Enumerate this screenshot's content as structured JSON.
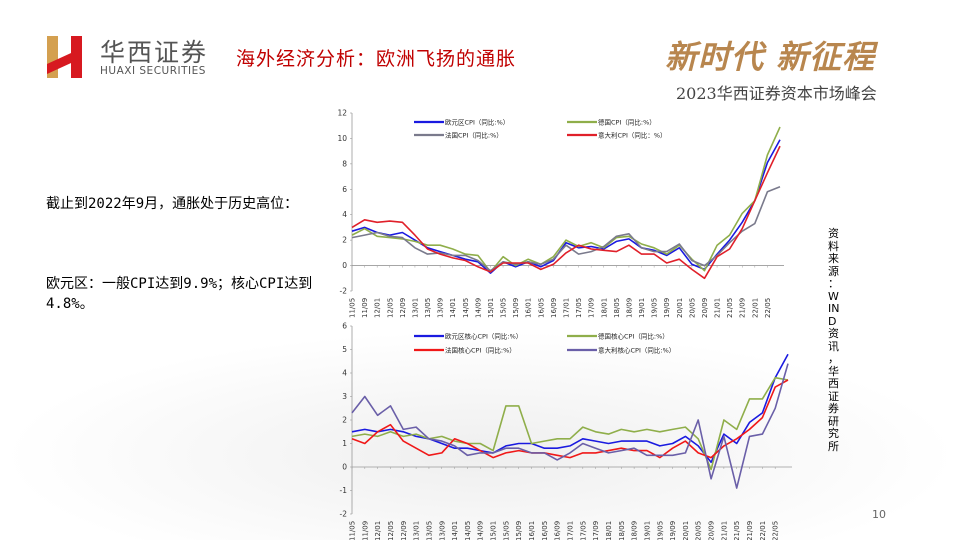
{
  "header": {
    "brand_cn": "华西证券",
    "brand_en": "HUAXI SECURITIES",
    "title": "海外经济分析：欧洲飞扬的通胀",
    "slogan": "新时代 新征程",
    "summit": "2023华西证券资本市场峰会"
  },
  "body": {
    "para1": "截止到2022年9月，通胀处于历史高位：",
    "para2": "欧元区：一般CPI达到9.9%；核心CPI达到4.8%。"
  },
  "source": "资料来源：WIND资讯，华西证券研究所",
  "page_number": "10",
  "chart_data": [
    {
      "type": "line",
      "ylim": [
        -2,
        12
      ],
      "yticks": [
        "12",
        "10",
        "8",
        "6",
        "4",
        "2",
        "0",
        "-2"
      ],
      "x": [
        "11/05",
        "11/09",
        "12/01",
        "12/05",
        "12/09",
        "13/01",
        "13/05",
        "13/09",
        "14/01",
        "14/05",
        "14/09",
        "15/01",
        "15/05",
        "15/09",
        "16/01",
        "16/05",
        "16/09",
        "17/01",
        "17/05",
        "17/09",
        "18/01",
        "18/05",
        "18/09",
        "19/01",
        "19/05",
        "19/09",
        "20/01",
        "20/05",
        "20/09",
        "21/01",
        "21/05",
        "21/09",
        "22/01",
        "22/05",
        "22/09"
      ],
      "xticks": [
        "11/05",
        "11/09",
        "12/01",
        "12/05",
        "12/09",
        "13/01",
        "13/05",
        "13/09",
        "14/01",
        "14/05",
        "14/09",
        "15/01",
        "15/05",
        "15/09",
        "16/01",
        "16/05",
        "16/09",
        "17/01",
        "17/05",
        "17/09",
        "18/01",
        "18/05",
        "18/09",
        "19/01",
        "19/05",
        "19/09",
        "20/01",
        "20/05",
        "20/09",
        "21/01",
        "21/05",
        "21/09",
        "22/01",
        "22/05"
      ],
      "legend_placement": "top",
      "series": [
        {
          "name": "欧元区CPI（同比:%）",
          "color": "#1a1ae0",
          "values": [
            2.7,
            3.0,
            2.6,
            2.4,
            2.6,
            2.0,
            1.4,
            1.1,
            0.8,
            0.5,
            0.3,
            -0.6,
            0.3,
            -0.1,
            0.3,
            -0.1,
            0.4,
            1.8,
            1.4,
            1.5,
            1.3,
            1.9,
            2.1,
            1.4,
            1.2,
            0.8,
            1.4,
            0.1,
            -0.3,
            0.9,
            2.0,
            3.4,
            5.1,
            8.1,
            9.9
          ]
        },
        {
          "name": "德国CPI（同比:%）",
          "color": "#8fae4a",
          "values": [
            2.4,
            2.9,
            2.3,
            2.2,
            2.1,
            1.9,
            1.6,
            1.6,
            1.3,
            0.9,
            0.8,
            -0.5,
            0.7,
            0.0,
            0.5,
            0.1,
            0.7,
            2.0,
            1.5,
            1.8,
            1.4,
            2.2,
            2.3,
            1.7,
            1.4,
            0.9,
            1.6,
            0.5,
            -0.4,
            1.6,
            2.4,
            4.1,
            5.1,
            8.7,
            10.9
          ]
        },
        {
          "name": "法国CPI（同比:%）",
          "color": "#7a7a8c",
          "values": [
            2.2,
            2.4,
            2.6,
            2.3,
            2.2,
            1.4,
            0.9,
            1.0,
            0.8,
            0.8,
            0.4,
            -0.4,
            0.3,
            0.1,
            0.3,
            0.1,
            0.5,
            1.6,
            0.9,
            1.1,
            1.5,
            2.3,
            2.5,
            1.4,
            1.1,
            1.1,
            1.7,
            0.4,
            0.0,
            0.8,
            1.8,
            2.7,
            3.3,
            5.8,
            6.2
          ]
        },
        {
          "name": "意大利CPI（同比：%）",
          "color": "#e0202a",
          "values": [
            3.0,
            3.6,
            3.4,
            3.5,
            3.4,
            2.4,
            1.3,
            0.9,
            0.6,
            0.4,
            -0.1,
            -0.5,
            0.2,
            0.2,
            0.2,
            -0.3,
            0.1,
            1.0,
            1.6,
            1.3,
            1.2,
            1.1,
            1.6,
            0.9,
            0.9,
            0.2,
            0.5,
            -0.3,
            -1.0,
            0.7,
            1.3,
            2.9,
            5.1,
            7.3,
            9.4
          ]
        }
      ]
    },
    {
      "type": "line",
      "ylim": [
        -2,
        6
      ],
      "yticks": [
        "6",
        "5",
        "4",
        "3",
        "2",
        "1",
        "0",
        "-1",
        "-2"
      ],
      "x": [
        "11/05",
        "11/09",
        "12/01",
        "12/05",
        "12/09",
        "13/01",
        "13/05",
        "13/09",
        "14/01",
        "14/05",
        "14/09",
        "15/01",
        "15/05",
        "15/09",
        "16/01",
        "16/05",
        "16/09",
        "17/01",
        "17/05",
        "17/09",
        "18/01",
        "18/05",
        "18/09",
        "19/01",
        "19/05",
        "19/09",
        "20/01",
        "20/05",
        "20/09",
        "21/01",
        "21/05",
        "21/09",
        "22/01",
        "22/05",
        "22/09"
      ],
      "xticks": [
        "11/05",
        "11/09",
        "12/01",
        "12/05",
        "12/09",
        "13/01",
        "13/05",
        "13/09",
        "14/01",
        "14/05",
        "14/09",
        "15/01",
        "15/05",
        "15/09",
        "16/01",
        "16/05",
        "16/09",
        "17/01",
        "17/05",
        "17/09",
        "18/01",
        "18/05",
        "18/09",
        "19/01",
        "19/05",
        "19/09",
        "20/01",
        "20/05",
        "20/09",
        "21/01",
        "21/05",
        "21/09",
        "22/01",
        "22/05"
      ],
      "legend_placement": "top",
      "series": [
        {
          "name": "欧元区核心CPI（同比:%）",
          "color": "#1a1ae0",
          "values": [
            1.5,
            1.6,
            1.5,
            1.6,
            1.5,
            1.3,
            1.2,
            1.0,
            0.8,
            0.8,
            0.7,
            0.6,
            0.9,
            1.0,
            1.0,
            0.8,
            0.8,
            0.9,
            1.2,
            1.1,
            1.0,
            1.1,
            1.1,
            1.1,
            0.9,
            1.0,
            1.3,
            0.9,
            0.2,
            1.4,
            1.0,
            1.9,
            2.3,
            3.8,
            4.8
          ]
        },
        {
          "name": "德国核心CPI（同比:%）",
          "color": "#8fae4a",
          "values": [
            1.3,
            1.4,
            1.3,
            1.5,
            1.3,
            1.4,
            1.2,
            1.3,
            1.1,
            1.0,
            1.0,
            0.7,
            2.6,
            2.6,
            1.0,
            1.1,
            1.2,
            1.2,
            1.7,
            1.5,
            1.4,
            1.6,
            1.5,
            1.6,
            1.5,
            1.6,
            1.7,
            1.2,
            -0.1,
            2.0,
            1.6,
            2.9,
            2.9,
            3.8,
            3.7
          ]
        },
        {
          "name": "法国核心CPI（同比:%）",
          "color": "#f01818",
          "values": [
            1.2,
            1.0,
            1.5,
            1.8,
            1.1,
            0.8,
            0.5,
            0.6,
            1.2,
            1.0,
            0.7,
            0.4,
            0.6,
            0.7,
            0.6,
            0.6,
            0.5,
            0.4,
            0.6,
            0.6,
            0.7,
            0.8,
            0.7,
            0.7,
            0.4,
            0.8,
            1.1,
            0.6,
            0.4,
            0.9,
            1.2,
            1.6,
            2.1,
            3.4,
            3.7
          ]
        },
        {
          "name": "意大利核心CPI（同比:%）",
          "color": "#6a5fa8",
          "values": [
            2.3,
            3.0,
            2.2,
            2.6,
            1.6,
            1.7,
            1.2,
            1.1,
            0.9,
            0.5,
            0.6,
            0.6,
            0.8,
            0.8,
            0.6,
            0.6,
            0.3,
            0.6,
            1.0,
            0.8,
            0.6,
            0.7,
            0.8,
            0.5,
            0.5,
            0.5,
            0.6,
            2.0,
            -0.5,
            1.3,
            -0.9,
            1.3,
            1.4,
            2.5,
            4.4
          ]
        }
      ]
    }
  ]
}
